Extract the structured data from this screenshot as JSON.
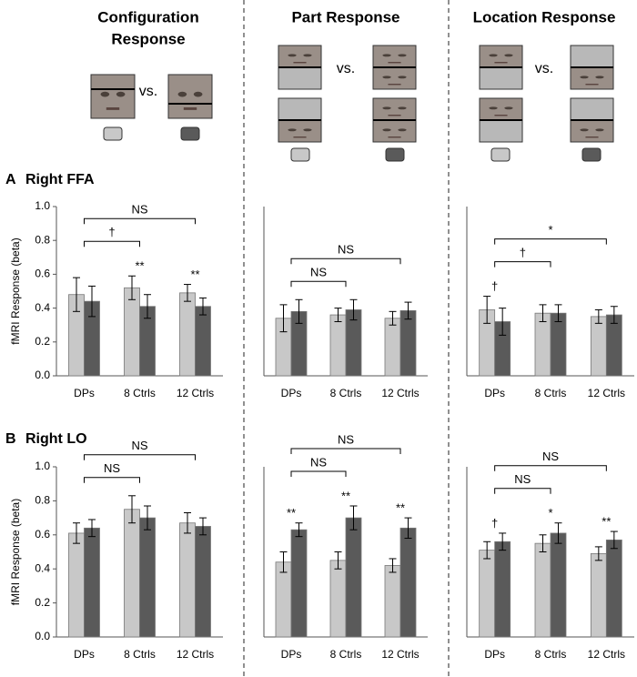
{
  "columns": [
    {
      "title_lines": [
        "Configuration",
        "Response"
      ],
      "vs": "vs."
    },
    {
      "title_lines": [
        "Part Response"
      ],
      "vs": "vs."
    },
    {
      "title_lines": [
        "Location Response"
      ],
      "vs": "vs."
    }
  ],
  "rows": [
    {
      "letter": "A",
      "title": "Right FFA"
    },
    {
      "letter": "B",
      "title": "Right LO"
    }
  ],
  "chart_data": [
    {
      "type": "bar",
      "ylabel": "fMRI Response (beta)",
      "categories": [
        "DPs",
        "8 Ctrls",
        "12 Ctrls"
      ],
      "series": [
        {
          "color": "#c8c8c8",
          "values": [
            0.48,
            0.52,
            0.49
          ],
          "errors": [
            0.1,
            0.07,
            0.05
          ]
        },
        {
          "color": "#5a5a5a",
          "values": [
            0.44,
            0.41,
            0.41
          ],
          "errors": [
            0.09,
            0.07,
            0.05
          ]
        }
      ],
      "ylim": [
        0,
        1
      ],
      "yticks": [
        {
          "value": 0,
          "label": "0.0"
        },
        {
          "value": 0.2,
          "label": "0.2"
        },
        {
          "value": 0.4,
          "label": "0.4"
        },
        {
          "value": 0.6,
          "label": "0.6"
        },
        {
          "value": 0.8,
          "label": "0.8"
        },
        {
          "value": 1,
          "label": "1.0"
        }
      ],
      "annotations": [
        {
          "text": "**",
          "category": "8 Ctrls"
        },
        {
          "text": "**",
          "category": "12 Ctrls"
        }
      ],
      "brackets": [
        {
          "text": "NS",
          "from": "DPs",
          "to": "12 Ctrls"
        },
        {
          "text": "†",
          "from": "DPs",
          "to": "8 Ctrls"
        }
      ]
    },
    {
      "type": "bar",
      "categories": [
        "DPs",
        "8 Ctrls",
        "12 Ctrls"
      ],
      "series": [
        {
          "color": "#c8c8c8",
          "values": [
            0.34,
            0.36,
            0.34
          ],
          "errors": [
            0.08,
            0.04,
            0.04
          ]
        },
        {
          "color": "#5a5a5a",
          "values": [
            0.38,
            0.39,
            0.385
          ],
          "errors": [
            0.07,
            0.06,
            0.05
          ]
        }
      ],
      "ylim": [
        0,
        1
      ],
      "annotations": [],
      "brackets": [
        {
          "text": "NS",
          "from": "DPs",
          "to": "12 Ctrls"
        },
        {
          "text": "NS",
          "from": "DPs",
          "to": "8 Ctrls"
        }
      ]
    },
    {
      "type": "bar",
      "categories": [
        "DPs",
        "8 Ctrls",
        "12 Ctrls"
      ],
      "series": [
        {
          "color": "#c8c8c8",
          "values": [
            0.39,
            0.37,
            0.35
          ],
          "errors": [
            0.08,
            0.05,
            0.04
          ]
        },
        {
          "color": "#5a5a5a",
          "values": [
            0.32,
            0.37,
            0.36
          ],
          "errors": [
            0.08,
            0.05,
            0.05
          ]
        }
      ],
      "ylim": [
        0,
        1
      ],
      "annotations": [
        {
          "text": "†",
          "category": "DPs"
        }
      ],
      "brackets": [
        {
          "text": "*",
          "from": "DPs",
          "to": "12 Ctrls"
        },
        {
          "text": "†",
          "from": "DPs",
          "to": "8 Ctrls"
        }
      ]
    },
    {
      "type": "bar",
      "ylabel": "fMRI Response (beta)",
      "categories": [
        "DPs",
        "8 Ctrls",
        "12 Ctrls"
      ],
      "series": [
        {
          "color": "#c8c8c8",
          "values": [
            0.61,
            0.75,
            0.67
          ],
          "errors": [
            0.06,
            0.08,
            0.06
          ]
        },
        {
          "color": "#5a5a5a",
          "values": [
            0.64,
            0.7,
            0.65
          ],
          "errors": [
            0.05,
            0.07,
            0.05
          ]
        }
      ],
      "ylim": [
        0,
        1
      ],
      "yticks": [
        {
          "value": 0,
          "label": "0.0"
        },
        {
          "value": 0.2,
          "label": "0.2"
        },
        {
          "value": 0.4,
          "label": "0.4"
        },
        {
          "value": 0.6,
          "label": "0.6"
        },
        {
          "value": 0.8,
          "label": "0.8"
        },
        {
          "value": 1,
          "label": "1.0"
        }
      ],
      "annotations": [],
      "brackets": [
        {
          "text": "NS",
          "from": "DPs",
          "to": "12 Ctrls"
        },
        {
          "text": "NS",
          "from": "DPs",
          "to": "8 Ctrls"
        }
      ]
    },
    {
      "type": "bar",
      "categories": [
        "DPs",
        "8 Ctrls",
        "12 Ctrls"
      ],
      "series": [
        {
          "color": "#c8c8c8",
          "values": [
            0.44,
            0.45,
            0.42
          ],
          "errors": [
            0.06,
            0.05,
            0.04
          ]
        },
        {
          "color": "#5a5a5a",
          "values": [
            0.63,
            0.7,
            0.64
          ],
          "errors": [
            0.04,
            0.07,
            0.06
          ]
        }
      ],
      "ylim": [
        0,
        1
      ],
      "annotations": [
        {
          "text": "**",
          "category": "DPs"
        },
        {
          "text": "**",
          "category": "8 Ctrls"
        },
        {
          "text": "**",
          "category": "12 Ctrls"
        }
      ],
      "brackets": [
        {
          "text": "NS",
          "from": "DPs",
          "to": "12 Ctrls"
        },
        {
          "text": "NS",
          "from": "DPs",
          "to": "8 Ctrls"
        }
      ]
    },
    {
      "type": "bar",
      "categories": [
        "DPs",
        "8 Ctrls",
        "12 Ctrls"
      ],
      "series": [
        {
          "color": "#c8c8c8",
          "values": [
            0.51,
            0.55,
            0.49
          ],
          "errors": [
            0.05,
            0.05,
            0.04
          ]
        },
        {
          "color": "#5a5a5a",
          "values": [
            0.56,
            0.61,
            0.57
          ],
          "errors": [
            0.05,
            0.06,
            0.05
          ]
        }
      ],
      "ylim": [
        0,
        1
      ],
      "annotations": [
        {
          "text": "†",
          "category": "DPs"
        },
        {
          "text": "*",
          "category": "8 Ctrls"
        },
        {
          "text": "**",
          "category": "12 Ctrls"
        }
      ],
      "brackets": [
        {
          "text": "NS",
          "from": "DPs",
          "to": "12 Ctrls"
        },
        {
          "text": "NS",
          "from": "DPs",
          "to": "8 Ctrls"
        }
      ]
    }
  ]
}
